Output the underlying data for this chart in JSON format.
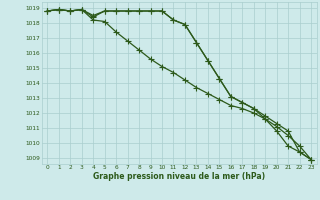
{
  "x": [
    0,
    1,
    2,
    3,
    4,
    5,
    6,
    7,
    8,
    9,
    10,
    11,
    12,
    13,
    14,
    15,
    16,
    17,
    18,
    19,
    20,
    21,
    22,
    23
  ],
  "line1": [
    1018.8,
    1018.9,
    1018.8,
    1018.9,
    1018.5,
    1018.8,
    1018.8,
    1018.8,
    1018.8,
    1018.8,
    1018.8,
    1018.2,
    1017.9,
    1016.7,
    1015.5,
    1014.3,
    1013.1,
    1012.7,
    1012.3,
    1011.6,
    1010.8,
    1009.8,
    1009.4,
    1008.9
  ],
  "line2": [
    1018.8,
    1018.9,
    1018.8,
    1018.9,
    1018.2,
    1018.1,
    1017.4,
    1016.8,
    1016.2,
    1015.6,
    1015.1,
    1014.7,
    1014.2,
    1013.7,
    1013.3,
    1012.9,
    1012.5,
    1012.3,
    1012.0,
    1011.6,
    1011.1,
    1010.5,
    1009.8,
    1008.9
  ],
  "line3": [
    1018.8,
    1018.9,
    1018.8,
    1018.9,
    1018.4,
    1018.8,
    1018.8,
    1018.8,
    1018.8,
    1018.8,
    1018.8,
    1018.2,
    1017.9,
    1016.7,
    1015.5,
    1014.3,
    1013.1,
    1012.7,
    1012.3,
    1011.8,
    1011.3,
    1010.8,
    1009.4,
    1008.9
  ],
  "line_color": "#2d5a1b",
  "bg_color": "#ceeaea",
  "grid_color": "#aacece",
  "ylabel_values": [
    1009,
    1010,
    1011,
    1012,
    1013,
    1014,
    1015,
    1016,
    1017,
    1018,
    1019
  ],
  "ylim": [
    1008.6,
    1019.4
  ],
  "xlim": [
    -0.5,
    23.5
  ],
  "xlabel": "Graphe pression niveau de la mer (hPa)",
  "marker": "+",
  "markersize": 4,
  "linewidth": 0.9
}
